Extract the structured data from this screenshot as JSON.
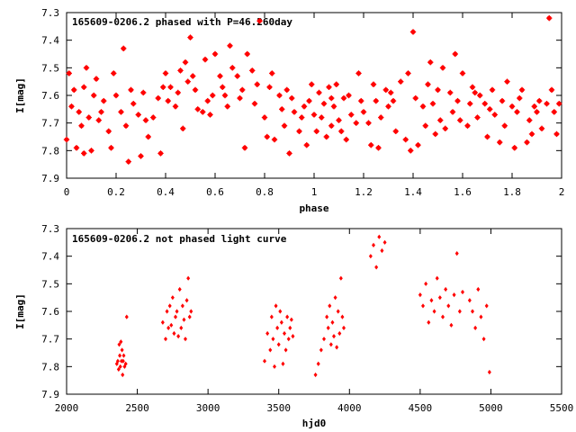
{
  "chart_data": [
    {
      "type": "scatter",
      "title": "165609-0206.2 phased with P=46.260day",
      "xlabel": "phase",
      "ylabel": "I[mag]",
      "xlim": [
        0,
        2
      ],
      "ylim": [
        7.9,
        7.3
      ],
      "y_inverted": true,
      "xticks": [
        "0",
        "0.2",
        "0.4",
        "0.6",
        "0.8",
        "1",
        "1.2",
        "1.4",
        "1.6",
        "1.8",
        "2"
      ],
      "yticks": [
        "7.3",
        "7.4",
        "7.5",
        "7.6",
        "7.7",
        "7.8",
        "7.9"
      ],
      "grid": false,
      "marker_color": "#ff0000",
      "series": [
        {
          "x": [
            0.0,
            0.01,
            0.02,
            0.03,
            0.04,
            0.05,
            0.06,
            0.07,
            0.07,
            0.08,
            0.09,
            0.1,
            0.11,
            0.12,
            0.13,
            0.14,
            0.15,
            0.17,
            0.18,
            0.19,
            0.2,
            0.22,
            0.23,
            0.24,
            0.25,
            0.26,
            0.27,
            0.29,
            0.3,
            0.31,
            0.32,
            0.33,
            0.35,
            0.37,
            0.38,
            0.39,
            0.4,
            0.41,
            0.42,
            0.44,
            0.45,
            0.46,
            0.47,
            0.48,
            0.49,
            0.5,
            0.51,
            0.52,
            0.53,
            0.55,
            0.56,
            0.57,
            0.58,
            0.59,
            0.6,
            0.62,
            0.63,
            0.64,
            0.65,
            0.66,
            0.67,
            0.69,
            0.7,
            0.71,
            0.72,
            0.73,
            0.75,
            0.76,
            0.77,
            0.78,
            0.8,
            0.81,
            0.82,
            0.83,
            0.84,
            0.86,
            0.87,
            0.88,
            0.89,
            0.9,
            0.91,
            0.92,
            0.94,
            0.95,
            0.96,
            0.97,
            0.98,
            0.99,
            1.0,
            1.01,
            1.02,
            1.03,
            1.04,
            1.05,
            1.06,
            1.07,
            1.07,
            1.08,
            1.09,
            1.1,
            1.11,
            1.12,
            1.13,
            1.14,
            1.15,
            1.17,
            1.18,
            1.19,
            1.2,
            1.22,
            1.23,
            1.24,
            1.25,
            1.26,
            1.27,
            1.29,
            1.3,
            1.31,
            1.32,
            1.33,
            1.35,
            1.37,
            1.38,
            1.39,
            1.4,
            1.41,
            1.42,
            1.44,
            1.45,
            1.46,
            1.47,
            1.48,
            1.49,
            1.5,
            1.51,
            1.52,
            1.53,
            1.55,
            1.56,
            1.57,
            1.58,
            1.59,
            1.6,
            1.62,
            1.63,
            1.64,
            1.65,
            1.66,
            1.67,
            1.69,
            1.7,
            1.71,
            1.72,
            1.73,
            1.75,
            1.76,
            1.77,
            1.78,
            1.8,
            1.81,
            1.82,
            1.83,
            1.84,
            1.86,
            1.87,
            1.88,
            1.89,
            1.9,
            1.91,
            1.92,
            1.94,
            1.95,
            1.96,
            1.97,
            1.98,
            1.99
          ],
          "y": [
            7.76,
            7.52,
            7.64,
            7.58,
            7.79,
            7.66,
            7.71,
            7.57,
            7.81,
            7.5,
            7.68,
            7.8,
            7.6,
            7.54,
            7.69,
            7.66,
            7.62,
            7.73,
            7.79,
            7.52,
            7.6,
            7.66,
            7.43,
            7.71,
            7.84,
            7.58,
            7.63,
            7.67,
            7.82,
            7.59,
            7.69,
            7.75,
            7.68,
            7.61,
            7.81,
            7.57,
            7.52,
            7.62,
            7.57,
            7.64,
            7.59,
            7.51,
            7.72,
            7.48,
            7.55,
            7.39,
            7.53,
            7.58,
            7.65,
            7.66,
            7.47,
            7.62,
            7.67,
            7.6,
            7.45,
            7.53,
            7.57,
            7.6,
            7.64,
            7.42,
            7.5,
            7.53,
            7.61,
            7.58,
            7.79,
            7.45,
            7.51,
            7.63,
            7.56,
            7.33,
            7.68,
            7.75,
            7.57,
            7.52,
            7.76,
            7.6,
            7.65,
            7.71,
            7.58,
            7.81,
            7.61,
            7.66,
            7.73,
            7.68,
            7.64,
            7.78,
            7.62,
            7.56,
            7.67,
            7.73,
            7.59,
            7.68,
            7.63,
            7.75,
            7.57,
            7.71,
            7.61,
            7.64,
            7.56,
            7.69,
            7.73,
            7.61,
            7.76,
            7.6,
            7.67,
            7.7,
            7.52,
            7.62,
            7.66,
            7.7,
            7.78,
            7.56,
            7.62,
            7.79,
            7.68,
            7.58,
            7.64,
            7.59,
            7.62,
            7.73,
            7.55,
            7.76,
            7.52,
            7.8,
            7.37,
            7.61,
            7.78,
            7.64,
            7.71,
            7.56,
            7.48,
            7.63,
            7.74,
            7.58,
            7.69,
            7.5,
            7.72,
            7.59,
            7.66,
            7.45,
            7.62,
            7.69,
            7.52,
            7.71,
            7.63,
            7.57,
            7.59,
            7.68,
            7.6,
            7.63,
            7.75,
            7.65,
            7.58,
            7.67,
            7.77,
            7.62,
            7.71,
            7.55,
            7.64,
            7.79,
            7.66,
            7.61,
            7.58,
            7.77,
            7.69,
            7.74,
            7.64,
            7.66,
            7.62,
            7.72,
            7.63,
            7.32,
            7.58,
            7.66,
            7.74,
            7.63
          ]
        }
      ]
    },
    {
      "type": "scatter",
      "title": "165609-0206.2 not phased light curve",
      "xlabel": "hjd0",
      "ylabel": "I[mag]",
      "xlim": [
        2000,
        5500
      ],
      "ylim": [
        7.9,
        7.3
      ],
      "y_inverted": true,
      "xticks": [
        "2000",
        "2500",
        "3000",
        "3500",
        "4000",
        "4500",
        "5000",
        "5500"
      ],
      "yticks": [
        "7.3",
        "7.4",
        "7.5",
        "7.6",
        "7.7",
        "7.8",
        "7.9"
      ],
      "grid": false,
      "marker_color": "#ff0000",
      "series": [
        {
          "x": [
            2355,
            2362,
            2368,
            2372,
            2376,
            2380,
            2384,
            2388,
            2392,
            2396,
            2400,
            2404,
            2410,
            2418,
            2425,
            2680,
            2700,
            2710,
            2720,
            2730,
            2740,
            2750,
            2760,
            2770,
            2780,
            2790,
            2800,
            2810,
            2820,
            2830,
            2840,
            2850,
            2860,
            2870,
            2880,
            3400,
            3420,
            3440,
            3450,
            3460,
            3470,
            3480,
            3490,
            3500,
            3510,
            3520,
            3530,
            3540,
            3550,
            3560,
            3570,
            3580,
            3590,
            3600,
            3760,
            3780,
            3800,
            3820,
            3840,
            3850,
            3860,
            3870,
            3880,
            3890,
            3900,
            3910,
            3920,
            3930,
            3940,
            3950,
            3960,
            4150,
            4170,
            4190,
            4210,
            4230,
            4250,
            4500,
            4520,
            4540,
            4560,
            4580,
            4600,
            4620,
            4640,
            4660,
            4680,
            4700,
            4720,
            4740,
            4760,
            4780,
            4800,
            4850,
            4870,
            4890,
            4910,
            4930,
            4950,
            4970,
            4990
          ],
          "y": [
            7.79,
            7.78,
            7.81,
            7.72,
            7.76,
            7.8,
            7.71,
            7.78,
            7.74,
            7.83,
            7.78,
            7.76,
            7.8,
            7.79,
            7.62,
            7.64,
            7.7,
            7.6,
            7.66,
            7.58,
            7.65,
            7.55,
            7.68,
            7.62,
            7.6,
            7.69,
            7.52,
            7.66,
            7.58,
            7.63,
            7.7,
            7.56,
            7.48,
            7.62,
            7.6,
            7.78,
            7.68,
            7.74,
            7.62,
            7.7,
            7.8,
            7.58,
            7.66,
            7.72,
            7.6,
            7.64,
            7.79,
            7.68,
            7.74,
            7.62,
            7.7,
            7.66,
            7.63,
            7.69,
            7.83,
            7.79,
            7.74,
            7.7,
            7.62,
            7.66,
            7.58,
            7.72,
            7.64,
            7.69,
            7.55,
            7.73,
            7.6,
            7.68,
            7.48,
            7.62,
            7.66,
            7.4,
            7.36,
            7.44,
            7.33,
            7.38,
            7.35,
            7.54,
            7.58,
            7.5,
            7.64,
            7.56,
            7.6,
            7.48,
            7.55,
            7.62,
            7.52,
            7.58,
            7.65,
            7.54,
            7.39,
            7.6,
            7.53,
            7.56,
            7.6,
            7.66,
            7.52,
            7.62,
            7.7,
            7.58,
            7.82
          ]
        }
      ]
    }
  ]
}
